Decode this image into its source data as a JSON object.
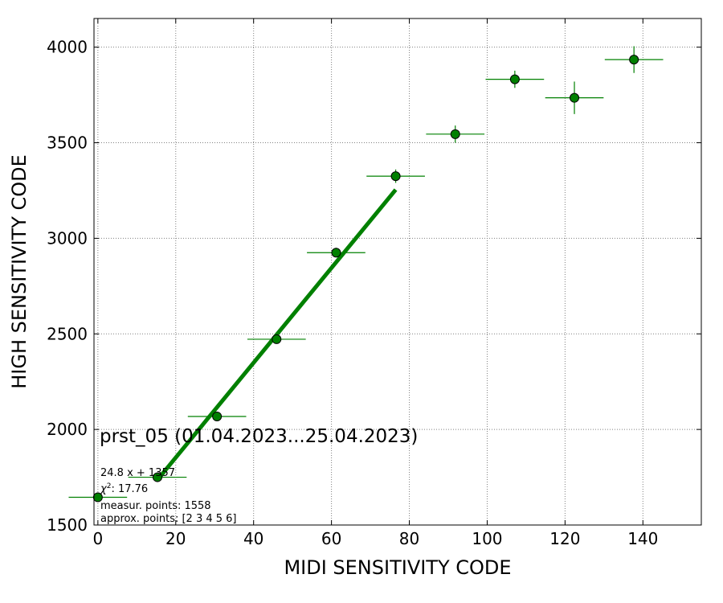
{
  "chart_data": {
    "type": "scatter",
    "title": "",
    "xlabel": "MIDI SENSITIVITY CODE",
    "ylabel": "HIGH SENSITIVITY CODE",
    "xlim": [
      -1,
      155
    ],
    "ylim": [
      1500,
      4150
    ],
    "xticks": [
      0,
      20,
      40,
      60,
      80,
      100,
      120,
      140
    ],
    "yticks": [
      1500,
      2000,
      2500,
      3000,
      3500,
      4000
    ],
    "grid": true,
    "colors": {
      "point": "#008000",
      "fit": "#008000",
      "grid": "#808080"
    },
    "points": [
      {
        "x": 0.0,
        "y": 1645,
        "xerr": 7.5,
        "yerr": 10
      },
      {
        "x": 15.3,
        "y": 1750,
        "xerr": 7.5,
        "yerr": 10
      },
      {
        "x": 30.6,
        "y": 2068,
        "xerr": 7.5,
        "yerr": 10
      },
      {
        "x": 45.9,
        "y": 2472,
        "xerr": 7.5,
        "yerr": 12
      },
      {
        "x": 61.2,
        "y": 2925,
        "xerr": 7.5,
        "yerr": 25
      },
      {
        "x": 76.5,
        "y": 3325,
        "xerr": 7.5,
        "yerr": 35
      },
      {
        "x": 91.8,
        "y": 3545,
        "xerr": 7.5,
        "yerr": 45
      },
      {
        "x": 107.1,
        "y": 3832,
        "xerr": 7.5,
        "yerr": 45
      },
      {
        "x": 122.4,
        "y": 3735,
        "xerr": 7.5,
        "yerr": 85
      },
      {
        "x": 137.7,
        "y": 3935,
        "xerr": 7.5,
        "yerr": 70
      }
    ],
    "fit": {
      "slope": 24.8,
      "intercept": 1357,
      "x_range": [
        15.3,
        76.5
      ]
    },
    "annotations": {
      "title": "prst_05 (01.04.2023...25.04.2023)",
      "formula": "24.8 x + 1357",
      "chi2_label": "χ",
      "chi2_sup": "2",
      "chi2_value": ": 17.76",
      "measur_points": "measur. points: 1558",
      "approx_points": "approx. points: [2 3 4 5 6]"
    }
  }
}
